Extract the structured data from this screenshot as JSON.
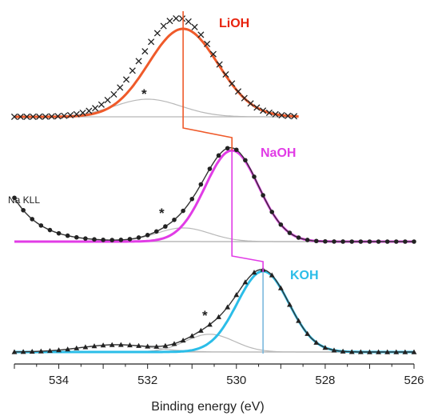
{
  "chart_data": {
    "type": "line",
    "xlabel": "Binding energy (eV)",
    "xlim": [
      535,
      526
    ],
    "x_reversed": true,
    "xticks": [
      534,
      532,
      530,
      528,
      526
    ],
    "y_axis_shown": false,
    "grid": false,
    "series": [
      {
        "name": "LiOH",
        "color": "#e8230e",
        "fit_color": "#ef5a2a",
        "marker": "x",
        "baseline": 0.0,
        "main_peak": {
          "center": 531.2,
          "height": 1.0,
          "width": 0.78
        },
        "shoulder_peak": {
          "center": 532.0,
          "height": 0.2,
          "width": 0.75
        },
        "data_range": [
          535.0,
          528.6
        ],
        "annotation": "*"
      },
      {
        "name": "NaOH",
        "color": "#e13ce6",
        "fit_color": "#e13ce6",
        "marker": "dot",
        "baseline": 0.0,
        "main_peak": {
          "center": 530.1,
          "height": 1.0,
          "width": 0.6
        },
        "shoulder_peak": {
          "center": 531.2,
          "height": 0.15,
          "width": 0.6
        },
        "auger_tail": {
          "start": 535.0,
          "height": 0.48,
          "decay": 0.6
        },
        "data_range": [
          535.0,
          526.0
        ],
        "annotation": "*",
        "side_label": "Na KLL"
      },
      {
        "name": "KOH",
        "color": "#2bbde8",
        "fit_color": "#2bbde8",
        "marker": "triangle",
        "baseline": 0.0,
        "main_peak": {
          "center": 529.4,
          "height": 1.0,
          "width": 0.58
        },
        "shoulder_peak": {
          "center": 530.6,
          "height": 0.22,
          "width": 0.55
        },
        "extra_peak": {
          "center": 532.7,
          "height": 0.09,
          "width": 0.8
        },
        "data_range": [
          535.0,
          526.0
        ],
        "annotation": "*"
      }
    ],
    "peak_shift_connector": {
      "color": "#ef5a2a",
      "color2": "#e13ce6",
      "color3": "#7ab8de",
      "positions": [
        531.2,
        530.1,
        529.4
      ]
    }
  },
  "palette": {
    "component_gray": "#b8b8b8",
    "marker_color": "#222222",
    "axis_color": "#222222"
  }
}
